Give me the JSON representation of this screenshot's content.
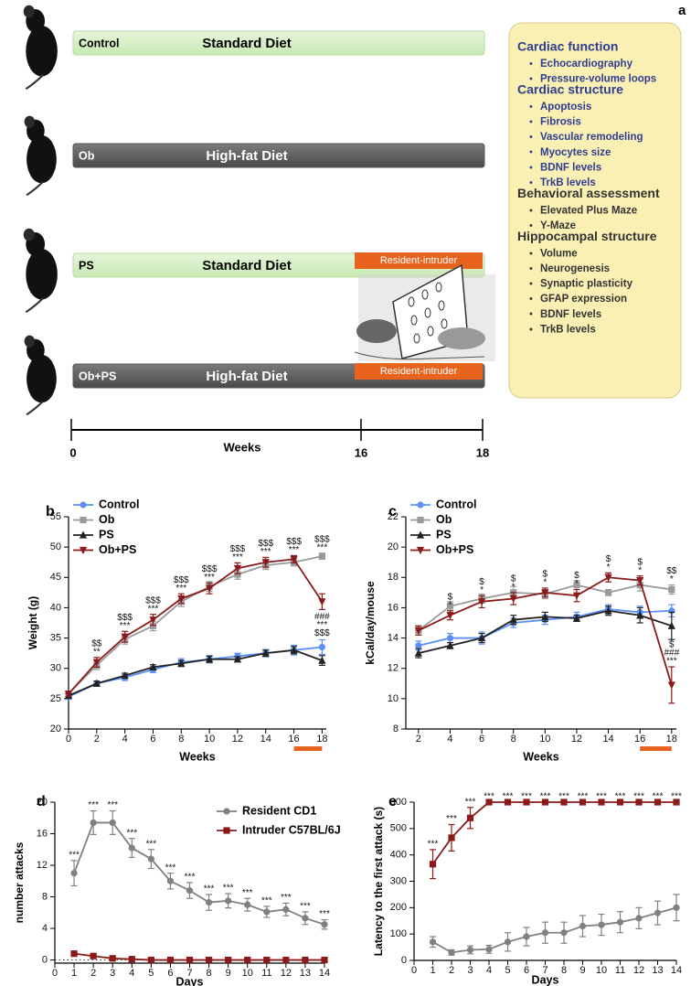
{
  "panel_a": {
    "panel_label": "a",
    "rows": [
      {
        "group": "Control",
        "diet": "Standard Diet",
        "style": "light"
      },
      {
        "group": "Ob",
        "diet": "High-fat Diet",
        "style": "dark"
      },
      {
        "group": "PS",
        "diet": "Standard Diet",
        "style": "light",
        "stress": "Resident-intruder"
      },
      {
        "group": "Ob+PS",
        "diet": "High-fat Diet",
        "style": "dark",
        "stress": "Resident-intruder"
      }
    ],
    "timeline": {
      "labels": [
        "0",
        "16",
        "18"
      ],
      "title": "Weeks"
    },
    "measures": [
      {
        "heading": "Cardiac function",
        "color": "#2e3d8f",
        "items": [
          "Echocardiography",
          "Pressure-volume loops"
        ]
      },
      {
        "heading": "Cardiac structure",
        "color": "#2e3d8f",
        "items": [
          "Apoptosis",
          "Fibrosis",
          "Vascular remodeling",
          "Myocytes size",
          "BDNF levels",
          "TrkB levels"
        ]
      },
      {
        "heading": "Behavioral assessment",
        "color": "#333333",
        "items": [
          "Elevated Plus Maze",
          "Y-Maze"
        ]
      },
      {
        "heading": "Hippocampal structure",
        "color": "#333333",
        "items": [
          "Volume",
          "Neurogenesis",
          "Synaptic plasticity",
          "GFAP expression",
          "BDNF levels",
          "TrkB levels"
        ]
      }
    ]
  },
  "chart_data": [
    {
      "type": "line",
      "panel_label": "b",
      "x_label": "Weeks",
      "y_label": "Weight (g)",
      "x": [
        0,
        2,
        4,
        6,
        8,
        10,
        12,
        14,
        16,
        18
      ],
      "xlim": [
        0,
        18.3
      ],
      "xticks": [
        0,
        2,
        4,
        6,
        8,
        10,
        12,
        14,
        16,
        18
      ],
      "ylim": [
        20,
        55
      ],
      "yticks": [
        20,
        25,
        30,
        35,
        40,
        45,
        50,
        55
      ],
      "legend": "top-left",
      "highlight_range": [
        16,
        18
      ],
      "series": [
        {
          "name": "Control",
          "color": "#5b8ff9",
          "marker": "circle",
          "values": [
            25.3,
            27.5,
            28.5,
            29.8,
            31,
            31.5,
            32,
            32.5,
            33,
            33.5
          ],
          "errors": [
            0.4,
            0.4,
            0.5,
            0.5,
            0.6,
            0.6,
            0.5,
            0.6,
            0.8,
            1.2
          ]
        },
        {
          "name": "Ob",
          "color": "#9a9a9a",
          "marker": "square",
          "values": [
            25.8,
            30.5,
            34.8,
            37,
            41,
            43.5,
            45.5,
            47,
            47.5,
            48.5
          ],
          "errors": [
            0.4,
            0.7,
            0.8,
            0.8,
            0.8,
            0.8,
            0.8,
            0.7,
            0.6,
            0.5
          ],
          "annotations_above": [
            null,
            null,
            null,
            null,
            null,
            null,
            null,
            null,
            null,
            [
              "$$$",
              "***"
            ]
          ]
        },
        {
          "name": "PS",
          "color": "#222222",
          "marker": "triangle",
          "values": [
            25.5,
            27.5,
            28.8,
            30.2,
            30.8,
            31.5,
            31.5,
            32.5,
            33,
            31.3
          ],
          "errors": [
            0.3,
            0.4,
            0.4,
            0.4,
            0.5,
            0.5,
            0.4,
            0.5,
            0.6,
            0.8
          ]
        },
        {
          "name": "Ob+PS",
          "color": "#8b1a1a",
          "marker": "down",
          "values": [
            25.8,
            31,
            35.2,
            38,
            41.5,
            43.2,
            46.5,
            47.5,
            48,
            41
          ],
          "errors": [
            0.4,
            0.8,
            0.9,
            0.9,
            0.8,
            0.9,
            0.9,
            0.8,
            0.6,
            1.3
          ],
          "annotations_above": [
            null,
            [
              "$$",
              "**"
            ],
            [
              "$$$",
              "***"
            ],
            [
              "$$$",
              "***"
            ],
            [
              "$$$",
              "***"
            ],
            [
              "$$$",
              "***"
            ],
            [
              "$$$",
              "***"
            ],
            [
              "$$$",
              "***"
            ],
            [
              "$$$",
              "***"
            ],
            null
          ],
          "annotations_below": [
            null,
            null,
            null,
            null,
            null,
            null,
            null,
            null,
            null,
            [
              "###",
              "***",
              "$$$"
            ]
          ]
        }
      ]
    },
    {
      "type": "line",
      "panel_label": "c",
      "x_label": "Weeks",
      "y_label": "kCal/day/mouse",
      "x": [
        2,
        4,
        6,
        8,
        10,
        12,
        14,
        16,
        18
      ],
      "xlim": [
        1.2,
        18.3
      ],
      "xticks": [
        2,
        4,
        6,
        8,
        10,
        12,
        14,
        16,
        18
      ],
      "ylim": [
        8,
        22
      ],
      "yticks": [
        8,
        10,
        12,
        14,
        16,
        18,
        20,
        22
      ],
      "legend": "top-left",
      "highlight_range": [
        16,
        18
      ],
      "series": [
        {
          "name": "Control",
          "color": "#5b8ff9",
          "marker": "circle",
          "values": [
            13.5,
            14,
            14,
            15,
            15.2,
            15.4,
            15.9,
            15.7,
            15.8
          ],
          "errors": [
            0.3,
            0.3,
            0.4,
            0.3,
            0.3,
            0.3,
            0.3,
            0.4,
            0.4
          ]
        },
        {
          "name": "Ob",
          "color": "#9a9a9a",
          "marker": "square",
          "values": [
            14.5,
            16.1,
            16.6,
            17,
            16.9,
            17.5,
            17,
            17.5,
            17.2
          ],
          "errors": [
            0.3,
            0.3,
            0.3,
            0.4,
            0.3,
            0.3,
            0.2,
            0.4,
            0.3
          ],
          "annotations_above": [
            null,
            null,
            null,
            null,
            null,
            null,
            null,
            null,
            [
              "$$",
              "*"
            ]
          ]
        },
        {
          "name": "PS",
          "color": "#222222",
          "marker": "triangle",
          "values": [
            13,
            13.5,
            14,
            15.2,
            15.4,
            15.3,
            15.8,
            15.5,
            14.8
          ],
          "errors": [
            0.3,
            0.2,
            0.3,
            0.3,
            0.3,
            0.2,
            0.3,
            0.5,
            0.9
          ]
        },
        {
          "name": "Ob+PS",
          "color": "#8b1a1a",
          "marker": "down",
          "values": [
            14.5,
            15.5,
            16.4,
            16.6,
            17,
            16.8,
            18,
            17.8,
            10.9
          ],
          "errors": [
            0.3,
            0.3,
            0.4,
            0.4,
            0.3,
            0.4,
            0.3,
            0.3,
            1.2
          ],
          "annotations_above": [
            null,
            [
              "$",
              "*"
            ],
            [
              "$",
              "*"
            ],
            [
              "$",
              "*"
            ],
            [
              "$",
              "*"
            ],
            [
              "$",
              "*"
            ],
            [
              "$",
              "*"
            ],
            [
              "$",
              "*"
            ],
            [
              "$",
              "###",
              "***"
            ]
          ]
        }
      ]
    },
    {
      "type": "line",
      "panel_label": "d",
      "x_label": "Days",
      "y_label": "number attacks",
      "x": [
        1,
        2,
        3,
        4,
        5,
        6,
        7,
        8,
        9,
        10,
        11,
        12,
        13,
        14
      ],
      "xlim": [
        0,
        14
      ],
      "xticks": [
        0,
        1,
        2,
        3,
        4,
        5,
        6,
        7,
        8,
        9,
        10,
        11,
        12,
        13,
        14
      ],
      "ylim": [
        -0.4,
        20
      ],
      "yticks": [
        0,
        4,
        8,
        12,
        16,
        20
      ],
      "legend": "top-right",
      "zero_line": true,
      "series": [
        {
          "name": "Resident CD1",
          "color": "#808080",
          "marker": "circle",
          "values": [
            11,
            17.4,
            17.4,
            14.2,
            12.8,
            10,
            8.8,
            7.3,
            7.5,
            7,
            6.1,
            6.4,
            5.3,
            4.5
          ],
          "errors": [
            1.6,
            1.5,
            1.5,
            1.2,
            1.2,
            1,
            1,
            1,
            0.9,
            0.8,
            0.7,
            0.8,
            0.8,
            0.6
          ],
          "annotations_above": [
            [
              "***"
            ],
            [
              "***"
            ],
            [
              "***"
            ],
            [
              "***"
            ],
            [
              "***"
            ],
            [
              "***"
            ],
            [
              "***"
            ],
            [
              "***"
            ],
            [
              "***"
            ],
            [
              "***"
            ],
            [
              "***"
            ],
            [
              "***"
            ],
            [
              "***"
            ],
            [
              "***"
            ]
          ]
        },
        {
          "name": "Intruder C57BL/6J",
          "color": "#8b1a1a",
          "marker": "square",
          "values": [
            0.8,
            0.5,
            0.2,
            0.1,
            0,
            0,
            0,
            0,
            0,
            0,
            0,
            0,
            0,
            0
          ],
          "errors": [
            0.2,
            0.1,
            0.1,
            0,
            0,
            0,
            0,
            0,
            0,
            0,
            0,
            0,
            0,
            0
          ]
        }
      ]
    },
    {
      "type": "line",
      "panel_label": "e",
      "x_label": "Days",
      "y_label": "Latency to the first attack (s)",
      "x": [
        1,
        2,
        3,
        4,
        5,
        6,
        7,
        8,
        9,
        10,
        11,
        12,
        13,
        14
      ],
      "xlim": [
        0,
        14
      ],
      "xticks": [
        0,
        1,
        2,
        3,
        4,
        5,
        6,
        7,
        8,
        9,
        10,
        11,
        12,
        13,
        14
      ],
      "ylim": [
        0,
        600
      ],
      "yticks": [
        0,
        100,
        200,
        300,
        400,
        500,
        600
      ],
      "series": [
        {
          "color": "#808080",
          "marker": "circle",
          "values": [
            70,
            30,
            40,
            42,
            70,
            90,
            105,
            105,
            130,
            135,
            145,
            160,
            180,
            200
          ],
          "errors": [
            20,
            10,
            15,
            15,
            35,
            35,
            40,
            40,
            40,
            40,
            40,
            40,
            45,
            50
          ]
        },
        {
          "color": "#8b1a1a",
          "marker": "square",
          "values": [
            365,
            465,
            540,
            600,
            600,
            600,
            600,
            600,
            600,
            600,
            600,
            600,
            600,
            600
          ],
          "errors": [
            55,
            50,
            40,
            0,
            0,
            0,
            0,
            0,
            0,
            0,
            0,
            0,
            0,
            0
          ],
          "annotations_above": [
            [
              "***"
            ],
            [
              "***"
            ],
            [
              "***"
            ],
            [
              "***"
            ],
            [
              "***"
            ],
            [
              "***"
            ],
            [
              "***"
            ],
            [
              "***"
            ],
            [
              "***"
            ],
            [
              "***"
            ],
            [
              "***"
            ],
            [
              "***"
            ],
            [
              "***"
            ],
            [
              "***"
            ]
          ]
        }
      ]
    }
  ]
}
